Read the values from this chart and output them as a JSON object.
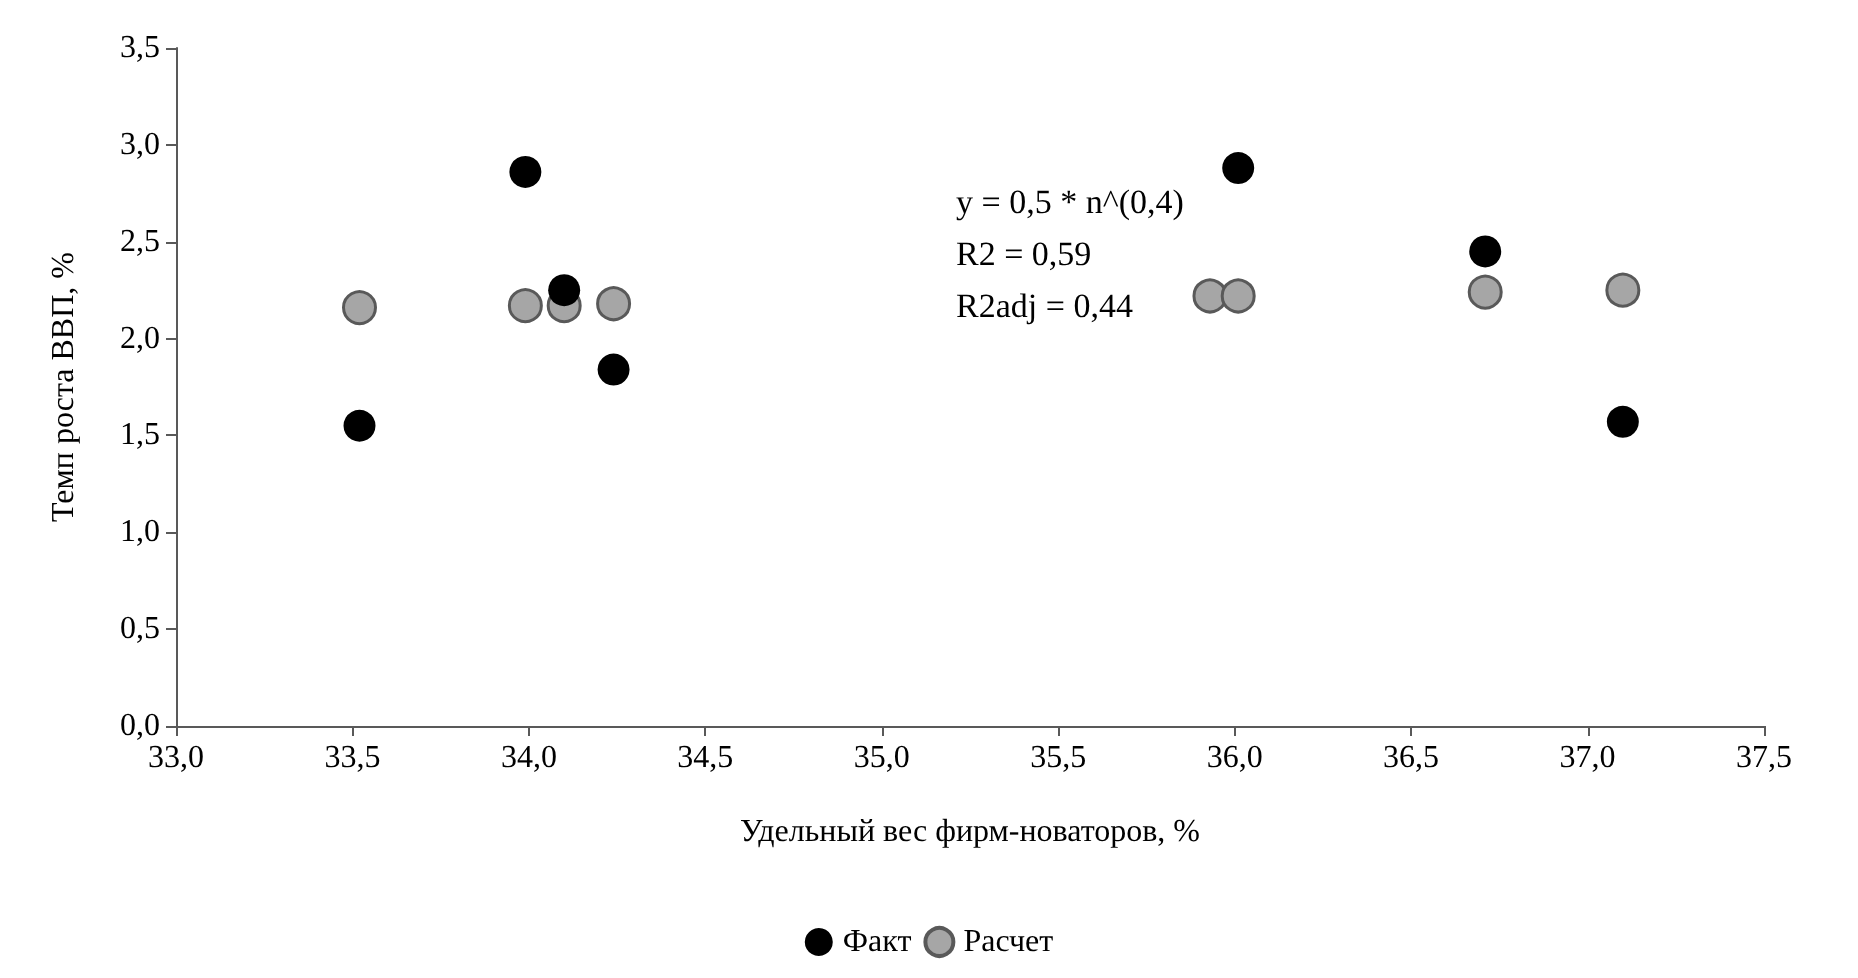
{
  "chart_data": {
    "type": "scatter",
    "xlabel": "Удельный вес фирм-новаторов, %",
    "ylabel": "Темп роста ВВП, %",
    "annotations": [
      "y = 0,5 * n^(0,4)",
      "R2 = 0,59",
      "R2adj = 0,44"
    ],
    "series": [
      {
        "name": "Факт",
        "color": "#000000",
        "x": [
          33.52,
          33.99,
          34.1,
          34.24,
          36.01,
          36.71,
          37.1
        ],
        "values": [
          1.55,
          2.86,
          2.25,
          1.84,
          2.88,
          2.45,
          1.57
        ]
      },
      {
        "name": "Расчет",
        "color": "#a6a6a6",
        "x": [
          33.52,
          33.99,
          34.1,
          34.24,
          35.93,
          36.01,
          36.71,
          37.1
        ],
        "values": [
          2.16,
          2.17,
          2.17,
          2.18,
          2.22,
          2.22,
          2.24,
          2.25
        ]
      }
    ],
    "xlim": [
      33,
      37.5
    ],
    "xticks": [
      {
        "value": 33,
        "label": "33,0"
      },
      {
        "value": 33.5,
        "label": "33,5"
      },
      {
        "value": 34,
        "label": "34,0"
      },
      {
        "value": 34.5,
        "label": "34,5"
      },
      {
        "value": 35,
        "label": "35,0"
      },
      {
        "value": 35.5,
        "label": "35,5"
      },
      {
        "value": 36,
        "label": "36,0"
      },
      {
        "value": 36.5,
        "label": "36,5"
      },
      {
        "value": 37,
        "label": "37,0"
      },
      {
        "value": 37.5,
        "label": "37,5"
      }
    ],
    "ylim": [
      0,
      3.5
    ],
    "yticks": [
      {
        "value": 0,
        "label": "0,0"
      },
      {
        "value": 0.5,
        "label": "0,5"
      },
      {
        "value": 1,
        "label": "1,0"
      },
      {
        "value": 1.5,
        "label": "1,5"
      },
      {
        "value": 2,
        "label": "2,0"
      },
      {
        "value": 2.5,
        "label": "2,5"
      },
      {
        "value": 3,
        "label": "3,0"
      },
      {
        "value": 3.5,
        "label": "3,5"
      }
    ],
    "grid": false,
    "legend": "bottom",
    "marker": "circle"
  }
}
